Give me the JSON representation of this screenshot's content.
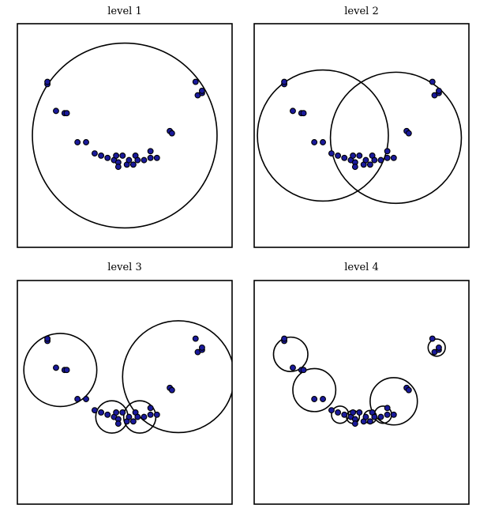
{
  "chart_data": [
    {
      "type": "scatter",
      "title": "level 1",
      "xlim": [
        0,
        1
      ],
      "ylim": [
        0,
        1
      ],
      "points": [
        [
          0.14,
          0.73
        ],
        [
          0.14,
          0.74
        ],
        [
          0.18,
          0.61
        ],
        [
          0.22,
          0.6
        ],
        [
          0.23,
          0.6
        ],
        [
          0.28,
          0.47
        ],
        [
          0.32,
          0.47
        ],
        [
          0.36,
          0.42
        ],
        [
          0.39,
          0.41
        ],
        [
          0.42,
          0.4
        ],
        [
          0.45,
          0.39
        ],
        [
          0.46,
          0.41
        ],
        [
          0.47,
          0.38
        ],
        [
          0.47,
          0.36
        ],
        [
          0.49,
          0.41
        ],
        [
          0.51,
          0.37
        ],
        [
          0.52,
          0.39
        ],
        [
          0.54,
          0.37
        ],
        [
          0.55,
          0.41
        ],
        [
          0.56,
          0.39
        ],
        [
          0.59,
          0.39
        ],
        [
          0.62,
          0.4
        ],
        [
          0.62,
          0.43
        ],
        [
          0.65,
          0.4
        ],
        [
          0.71,
          0.52
        ],
        [
          0.72,
          0.51
        ],
        [
          0.83,
          0.74
        ],
        [
          0.84,
          0.68
        ],
        [
          0.86,
          0.69
        ],
        [
          0.86,
          0.7
        ]
      ],
      "circles": [
        {
          "cx": 0.5,
          "cy": 0.5,
          "r": 0.43
        }
      ]
    },
    {
      "type": "scatter",
      "title": "level 2",
      "xlim": [
        0,
        1
      ],
      "ylim": [
        0,
        1
      ],
      "points": [
        [
          0.14,
          0.73
        ],
        [
          0.14,
          0.74
        ],
        [
          0.18,
          0.61
        ],
        [
          0.22,
          0.6
        ],
        [
          0.23,
          0.6
        ],
        [
          0.28,
          0.47
        ],
        [
          0.32,
          0.47
        ],
        [
          0.36,
          0.42
        ],
        [
          0.39,
          0.41
        ],
        [
          0.42,
          0.4
        ],
        [
          0.45,
          0.39
        ],
        [
          0.46,
          0.41
        ],
        [
          0.47,
          0.38
        ],
        [
          0.47,
          0.36
        ],
        [
          0.49,
          0.41
        ],
        [
          0.51,
          0.37
        ],
        [
          0.52,
          0.39
        ],
        [
          0.54,
          0.37
        ],
        [
          0.55,
          0.41
        ],
        [
          0.56,
          0.39
        ],
        [
          0.59,
          0.39
        ],
        [
          0.62,
          0.4
        ],
        [
          0.62,
          0.43
        ],
        [
          0.65,
          0.4
        ],
        [
          0.71,
          0.52
        ],
        [
          0.72,
          0.51
        ],
        [
          0.83,
          0.74
        ],
        [
          0.84,
          0.68
        ],
        [
          0.86,
          0.69
        ],
        [
          0.86,
          0.7
        ]
      ],
      "circles": [
        {
          "cx": 0.32,
          "cy": 0.5,
          "r": 0.305
        },
        {
          "cx": 0.66,
          "cy": 0.49,
          "r": 0.305
        }
      ]
    },
    {
      "type": "scatter",
      "title": "level 3",
      "xlim": [
        0,
        1
      ],
      "ylim": [
        0,
        1
      ],
      "points": [
        [
          0.14,
          0.73
        ],
        [
          0.14,
          0.74
        ],
        [
          0.18,
          0.61
        ],
        [
          0.22,
          0.6
        ],
        [
          0.23,
          0.6
        ],
        [
          0.28,
          0.47
        ],
        [
          0.32,
          0.47
        ],
        [
          0.36,
          0.42
        ],
        [
          0.39,
          0.41
        ],
        [
          0.42,
          0.4
        ],
        [
          0.45,
          0.39
        ],
        [
          0.46,
          0.41
        ],
        [
          0.47,
          0.38
        ],
        [
          0.47,
          0.36
        ],
        [
          0.49,
          0.41
        ],
        [
          0.51,
          0.37
        ],
        [
          0.52,
          0.39
        ],
        [
          0.54,
          0.37
        ],
        [
          0.55,
          0.41
        ],
        [
          0.56,
          0.39
        ],
        [
          0.59,
          0.39
        ],
        [
          0.62,
          0.4
        ],
        [
          0.62,
          0.43
        ],
        [
          0.65,
          0.4
        ],
        [
          0.71,
          0.52
        ],
        [
          0.72,
          0.51
        ],
        [
          0.83,
          0.74
        ],
        [
          0.84,
          0.68
        ],
        [
          0.86,
          0.69
        ],
        [
          0.86,
          0.7
        ]
      ],
      "circles": [
        {
          "cx": 0.2,
          "cy": 0.6,
          "r": 0.17
        },
        {
          "cx": 0.44,
          "cy": 0.39,
          "r": 0.075
        },
        {
          "cx": 0.57,
          "cy": 0.39,
          "r": 0.075
        },
        {
          "cx": 0.75,
          "cy": 0.57,
          "r": 0.26
        }
      ]
    },
    {
      "type": "scatter",
      "title": "level 4",
      "xlim": [
        0,
        1
      ],
      "ylim": [
        0,
        1
      ],
      "points": [
        [
          0.14,
          0.73
        ],
        [
          0.14,
          0.74
        ],
        [
          0.18,
          0.61
        ],
        [
          0.22,
          0.6
        ],
        [
          0.23,
          0.6
        ],
        [
          0.28,
          0.47
        ],
        [
          0.32,
          0.47
        ],
        [
          0.36,
          0.42
        ],
        [
          0.39,
          0.41
        ],
        [
          0.42,
          0.4
        ],
        [
          0.45,
          0.39
        ],
        [
          0.46,
          0.41
        ],
        [
          0.47,
          0.38
        ],
        [
          0.47,
          0.36
        ],
        [
          0.49,
          0.41
        ],
        [
          0.51,
          0.37
        ],
        [
          0.52,
          0.39
        ],
        [
          0.54,
          0.37
        ],
        [
          0.55,
          0.41
        ],
        [
          0.56,
          0.39
        ],
        [
          0.59,
          0.39
        ],
        [
          0.62,
          0.4
        ],
        [
          0.62,
          0.43
        ],
        [
          0.65,
          0.4
        ],
        [
          0.71,
          0.52
        ],
        [
          0.72,
          0.51
        ],
        [
          0.83,
          0.74
        ],
        [
          0.84,
          0.68
        ],
        [
          0.86,
          0.69
        ],
        [
          0.86,
          0.7
        ]
      ],
      "circles": [
        {
          "cx": 0.17,
          "cy": 0.67,
          "r": 0.08
        },
        {
          "cx": 0.28,
          "cy": 0.51,
          "r": 0.1
        },
        {
          "cx": 0.4,
          "cy": 0.4,
          "r": 0.04
        },
        {
          "cx": 0.46,
          "cy": 0.39,
          "r": 0.03
        },
        {
          "cx": 0.54,
          "cy": 0.39,
          "r": 0.03
        },
        {
          "cx": 0.6,
          "cy": 0.4,
          "r": 0.04
        },
        {
          "cx": 0.65,
          "cy": 0.46,
          "r": 0.11
        },
        {
          "cx": 0.85,
          "cy": 0.7,
          "r": 0.04
        }
      ]
    }
  ]
}
